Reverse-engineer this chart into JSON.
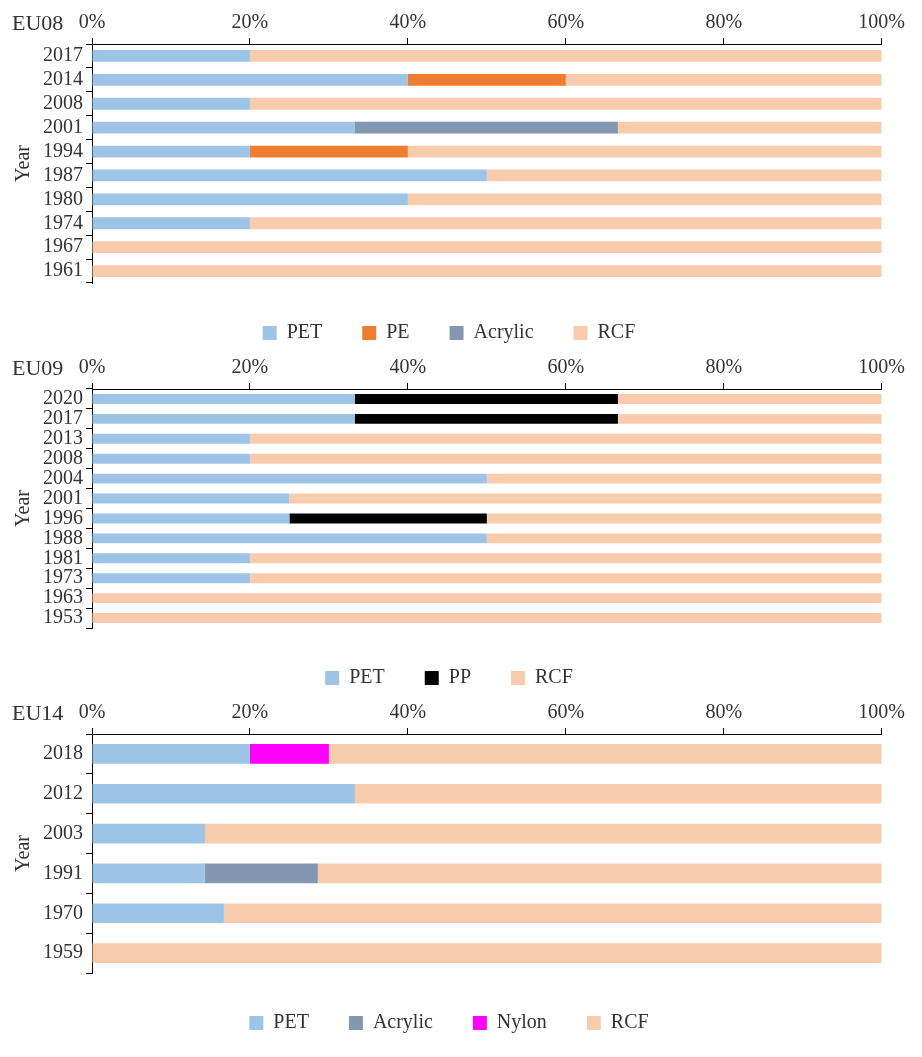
{
  "chart_data": [
    {
      "type": "bar",
      "orientation": "horizontal",
      "stacked": true,
      "title": "EU08",
      "ylabel": "Year",
      "categories": [
        "2017",
        "2014",
        "2008",
        "2001",
        "1994",
        "1987",
        "1980",
        "1974",
        "1967",
        "1961"
      ],
      "series": [
        {
          "name": "PET",
          "color": "#9dc3e6",
          "values": [
            20,
            40,
            20,
            33.3,
            20,
            50,
            40,
            20,
            0,
            0
          ]
        },
        {
          "name": "PE",
          "color": "#ed7d31",
          "values": [
            0,
            20,
            0,
            0,
            20,
            0,
            0,
            0,
            0,
            0
          ]
        },
        {
          "name": "Acrylic",
          "color": "#8497b0",
          "values": [
            0,
            0,
            0,
            33.3,
            0,
            0,
            0,
            0,
            0,
            0
          ]
        },
        {
          "name": "RCF",
          "color": "#f8cbad",
          "values": [
            80,
            40,
            80,
            33.4,
            60,
            50,
            60,
            80,
            100,
            100
          ]
        }
      ],
      "xlim": [
        0,
        100
      ],
      "xticks": [
        {
          "value": 0,
          "label": "0%"
        },
        {
          "value": 20,
          "label": "20%"
        },
        {
          "value": 40,
          "label": "40%"
        },
        {
          "value": 60,
          "label": "60%"
        },
        {
          "value": 80,
          "label": "80%"
        },
        {
          "value": 100,
          "label": "100%"
        }
      ],
      "grid": false,
      "legend": "bottom"
    },
    {
      "type": "bar",
      "orientation": "horizontal",
      "stacked": true,
      "title": "EU09",
      "ylabel": "Year",
      "categories": [
        "2020",
        "2017",
        "2013",
        "2008",
        "2004",
        "2001",
        "1996",
        "1988",
        "1981",
        "1973",
        "1963",
        "1953"
      ],
      "series": [
        {
          "name": "PET",
          "color": "#9dc3e6",
          "values": [
            33.3,
            33.3,
            20,
            20,
            50,
            25,
            25,
            50,
            20,
            20,
            0,
            0
          ]
        },
        {
          "name": "PP",
          "color": "#000000",
          "values": [
            33.3,
            33.3,
            0,
            0,
            0,
            0,
            25,
            0,
            0,
            0,
            0,
            0
          ]
        },
        {
          "name": "RCF",
          "color": "#f8cbad",
          "values": [
            33.4,
            33.4,
            80,
            80,
            50,
            75,
            50,
            50,
            80,
            80,
            100,
            100
          ]
        }
      ],
      "xlim": [
        0,
        100
      ],
      "xticks": [
        {
          "value": 0,
          "label": "0%"
        },
        {
          "value": 20,
          "label": "20%"
        },
        {
          "value": 40,
          "label": "40%"
        },
        {
          "value": 60,
          "label": "60%"
        },
        {
          "value": 80,
          "label": "80%"
        },
        {
          "value": 100,
          "label": "100%"
        }
      ],
      "grid": false,
      "legend": "bottom"
    },
    {
      "type": "bar",
      "orientation": "horizontal",
      "stacked": true,
      "title": "EU14",
      "ylabel": "Year",
      "categories": [
        "2018",
        "2012",
        "2003",
        "1991",
        "1970",
        "1959"
      ],
      "series": [
        {
          "name": "PET",
          "color": "#9dc3e6",
          "values": [
            20,
            33.3,
            14.3,
            14.3,
            16.7,
            0
          ]
        },
        {
          "name": "Acrylic",
          "color": "#8497b0",
          "values": [
            0,
            0,
            0,
            14.3,
            0,
            0
          ]
        },
        {
          "name": "Nylon",
          "color": "#ff00ff",
          "values": [
            10,
            0,
            0,
            0,
            0,
            0
          ]
        },
        {
          "name": "RCF",
          "color": "#f8cbad",
          "values": [
            70,
            66.7,
            85.7,
            71.4,
            83.3,
            100
          ]
        }
      ],
      "xlim": [
        0,
        100
      ],
      "xticks": [
        {
          "value": 0,
          "label": "0%"
        },
        {
          "value": 20,
          "label": "20%"
        },
        {
          "value": 40,
          "label": "40%"
        },
        {
          "value": 60,
          "label": "60%"
        },
        {
          "value": 80,
          "label": "80%"
        },
        {
          "value": 100,
          "label": "100%"
        }
      ],
      "grid": false,
      "legend": "bottom"
    }
  ]
}
